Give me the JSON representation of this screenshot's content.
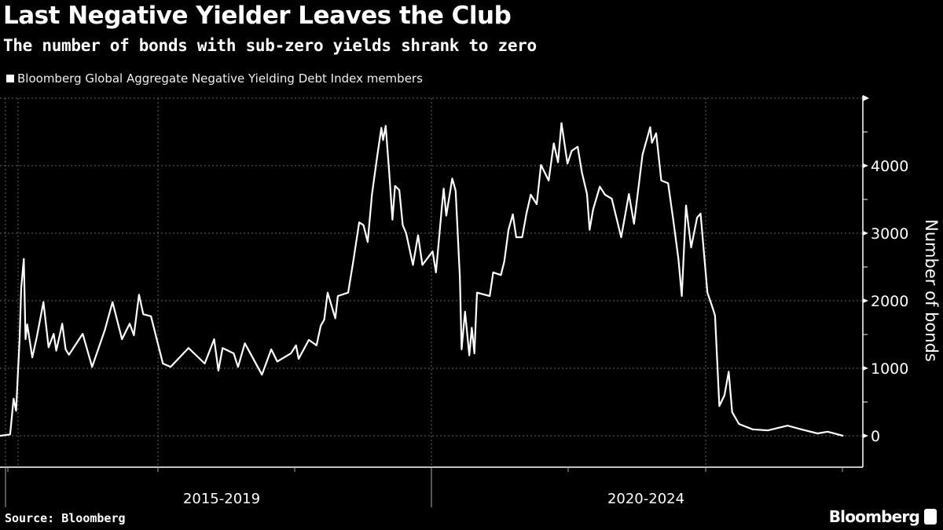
{
  "title": "Last Negative Yielder Leaves the Club",
  "subtitle": "The number of bonds with sub-zero yields shrank to zero",
  "source": "Source: Bloomberg",
  "logo": "Bloomberg",
  "colors": {
    "background": "#000000",
    "line": "#ffffff",
    "grid": "#666666"
  },
  "chart_data": {
    "type": "line",
    "title": "Last Negative Yielder Leaves the Club",
    "subtitle": "The number of bonds with sub-zero yields shrank to zero",
    "ylabel": "Number of bonds",
    "xlabel": "",
    "x_tick_labels": [
      "2015-2019",
      "2020-2024"
    ],
    "y_ticks": [
      0,
      1000,
      2000,
      3000,
      4000
    ],
    "ylim": [
      -500,
      5000
    ],
    "xlim": [
      2014.87,
      2025.0
    ],
    "grid": true,
    "legend_position": "top-left",
    "series": [
      {
        "name": "Bloomberg Global Aggregate Negative Yielding Debt Index members",
        "x": [
          2014.87,
          2014.99,
          2015.03,
          2015.06,
          2015.08,
          2015.1,
          2015.12,
          2015.15,
          2015.17,
          2015.19,
          2015.25,
          2015.3,
          2015.38,
          2015.44,
          2015.5,
          2015.53,
          2015.6,
          2015.64,
          2015.68,
          2015.84,
          2015.95,
          2016.1,
          2016.19,
          2016.3,
          2016.39,
          2016.44,
          2016.5,
          2016.55,
          2016.64,
          2016.71,
          2016.78,
          2016.87,
          2017.08,
          2017.27,
          2017.38,
          2017.43,
          2017.48,
          2017.61,
          2017.66,
          2017.74,
          2017.94,
          2018.05,
          2018.12,
          2018.28,
          2018.34,
          2018.37,
          2018.49,
          2018.58,
          2018.63,
          2018.67,
          2018.71,
          2018.8,
          2018.83,
          2018.95,
          2019.01,
          2019.08,
          2019.13,
          2019.18,
          2019.23,
          2019.29,
          2019.34,
          2019.36,
          2019.39,
          2019.43,
          2019.47,
          2019.5,
          2019.55,
          2019.59,
          2019.63,
          2019.71,
          2019.77,
          2019.82,
          2019.94,
          2019.98,
          2020.05,
          2020.07,
          2020.1,
          2020.17,
          2020.21,
          2020.26,
          2020.28,
          2020.32,
          2020.37,
          2020.4,
          2020.43,
          2020.46,
          2020.61,
          2020.65,
          2020.74,
          2020.78,
          2020.83,
          2020.88,
          2020.92,
          2020.99,
          2021.04,
          2021.09,
          2021.16,
          2021.21,
          2021.3,
          2021.36,
          2021.41,
          2021.45,
          2021.52,
          2021.57,
          2021.64,
          2021.69,
          2021.75,
          2021.78,
          2021.82,
          2021.9,
          2021.96,
          2022.04,
          2022.15,
          2022.24,
          2022.3,
          2022.4,
          2022.49,
          2022.51,
          2022.56,
          2022.62,
          2022.7,
          2022.76,
          2022.82,
          2022.86,
          2022.91,
          2022.97,
          2023.04,
          2023.08,
          2023.16,
          2023.22,
          2023.25,
          2023.3,
          2023.36,
          2023.41,
          2023.45,
          2023.53,
          2023.69,
          2023.87,
          2024.1,
          2024.26,
          2024.45,
          2024.57,
          2024.75
        ],
        "y": [
          0,
          20,
          550,
          370,
          900,
          1420,
          2190,
          2620,
          1430,
          1650,
          1160,
          1450,
          1980,
          1310,
          1510,
          1260,
          1660,
          1280,
          1200,
          1510,
          1020,
          1570,
          1980,
          1430,
          1660,
          1490,
          2090,
          1800,
          1770,
          1420,
          1070,
          1020,
          1300,
          1070,
          1430,
          965,
          1300,
          1220,
          1020,
          1370,
          905,
          1280,
          1100,
          1220,
          1340,
          1140,
          1420,
          1340,
          1630,
          1720,
          2120,
          1740,
          2070,
          2120,
          2580,
          3160,
          3120,
          2870,
          3580,
          4130,
          4560,
          4380,
          4590,
          3930,
          3200,
          3700,
          3640,
          3120,
          3000,
          2530,
          2970,
          2530,
          2730,
          2420,
          3400,
          3660,
          3260,
          3810,
          3630,
          2350,
          1280,
          1840,
          1190,
          1600,
          1220,
          2120,
          2070,
          2420,
          2380,
          2580,
          3050,
          3280,
          2940,
          2940,
          3290,
          3570,
          3430,
          4010,
          3780,
          4330,
          4050,
          4630,
          4030,
          4220,
          4280,
          3900,
          3580,
          3050,
          3350,
          3690,
          3570,
          3510,
          2940,
          3580,
          3140,
          4160,
          4570,
          4340,
          4480,
          3780,
          3740,
          3200,
          2620,
          2070,
          3410,
          2790,
          3230,
          3290,
          2120,
          1900,
          1780,
          440,
          600,
          950,
          350,
          175,
          95,
          80,
          150,
          95,
          35,
          60,
          0
        ]
      }
    ]
  }
}
